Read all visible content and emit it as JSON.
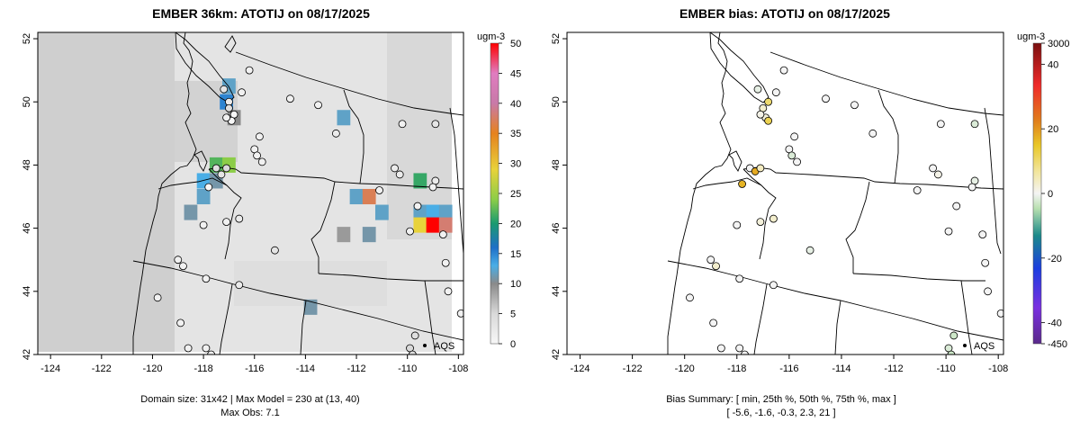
{
  "panels": [
    {
      "title": "EMBER 36km: ATOTIJ on 08/17/2025",
      "footer": [
        "Domain size: 31x42 | Max Model = 230 at (13, 40)",
        "Max Obs: 7.1"
      ],
      "colorbar": {
        "unit": "ugm-3",
        "labels": [
          "50",
          "45",
          "40",
          "35",
          "30",
          "25",
          "20",
          "15",
          "10",
          "5",
          "0"
        ]
      },
      "legend_label": "AQS"
    },
    {
      "title": "EMBER bias: ATOTIJ on 08/17/2025",
      "footer": [
        "Bias Summary: [ min, 25th %, 50th %, 75th %, max ]",
        "[ -5.6,   -1.6,   -0.3,   2.3,   21 ]"
      ],
      "colorbar": {
        "unit": "ugm-3",
        "labels": [
          "3000",
          "40",
          "20",
          "0",
          "-20",
          "-40",
          "-450"
        ]
      },
      "legend_label": "AQS"
    }
  ],
  "chart_data": [
    {
      "type": "heatmap",
      "title": "EMBER 36km: ATOTIJ on 08/17/2025",
      "variable": "ATOTIJ",
      "units": "ugm-3",
      "x_ticks": [
        "-124",
        "-122",
        "-120",
        "-118",
        "-116",
        "-114",
        "-112",
        "-110",
        "-108"
      ],
      "y_ticks": [
        "42",
        "44",
        "46",
        "48",
        "50",
        "52"
      ],
      "xlim": [
        -124.5,
        -107.8
      ],
      "ylim": [
        42,
        52.2
      ],
      "colorbar_range": [
        0,
        50
      ],
      "grid_dims": [
        31,
        42
      ],
      "max_model": 230,
      "max_model_cell": [
        13,
        40
      ],
      "max_obs": 7.1,
      "high_cells": [
        {
          "lon": -117.0,
          "lat": 50.5,
          "value": 12
        },
        {
          "lon": -117.1,
          "lat": 50.0,
          "value": 15
        },
        {
          "lon": -116.8,
          "lat": 49.5,
          "value": 10
        },
        {
          "lon": -112.5,
          "lat": 49.5,
          "value": 12
        },
        {
          "lon": -118.0,
          "lat": 47.5,
          "value": 13
        },
        {
          "lon": -117.5,
          "lat": 47.5,
          "value": 11
        },
        {
          "lon": -117.5,
          "lat": 48.0,
          "value": 22
        },
        {
          "lon": -117.0,
          "lat": 48.0,
          "value": 24
        },
        {
          "lon": -118.0,
          "lat": 47.0,
          "value": 12
        },
        {
          "lon": -118.5,
          "lat": 46.5,
          "value": 11
        },
        {
          "lon": -112.0,
          "lat": 47.0,
          "value": 12
        },
        {
          "lon": -111.5,
          "lat": 47.0,
          "value": 37
        },
        {
          "lon": -111.0,
          "lat": 46.5,
          "value": 12
        },
        {
          "lon": -112.5,
          "lat": 45.8,
          "value": 9
        },
        {
          "lon": -111.5,
          "lat": 45.8,
          "value": 11
        },
        {
          "lon": -109.5,
          "lat": 47.5,
          "value": 21
        },
        {
          "lon": -109.5,
          "lat": 46.5,
          "value": 12
        },
        {
          "lon": -109.0,
          "lat": 46.5,
          "value": 13
        },
        {
          "lon": -108.5,
          "lat": 46.5,
          "value": 12
        },
        {
          "lon": -109.5,
          "lat": 46.1,
          "value": 29
        },
        {
          "lon": -109.0,
          "lat": 46.1,
          "value": 50
        },
        {
          "lon": -108.5,
          "lat": 46.1,
          "value": 38
        },
        {
          "lon": -113.8,
          "lat": 43.5,
          "value": 11
        }
      ],
      "obs_points": [
        {
          "lon": -116.2,
          "lat": 51.0,
          "value": 1
        },
        {
          "lon": -117.2,
          "lat": 50.4,
          "value": 3
        },
        {
          "lon": -116.5,
          "lat": 50.3,
          "value": 1
        },
        {
          "lon": -117.0,
          "lat": 50.0,
          "value": 2
        },
        {
          "lon": -117.0,
          "lat": 49.8,
          "value": 4
        },
        {
          "lon": -116.8,
          "lat": 49.6,
          "value": 0
        },
        {
          "lon": -116.9,
          "lat": 49.4,
          "value": 0
        },
        {
          "lon": -117.1,
          "lat": 49.5,
          "value": 1
        },
        {
          "lon": -114.6,
          "lat": 50.1,
          "value": 1
        },
        {
          "lon": -113.5,
          "lat": 49.9,
          "value": 1
        },
        {
          "lon": -110.2,
          "lat": 49.3,
          "value": 1
        },
        {
          "lon": -108.9,
          "lat": 49.3,
          "value": 3
        },
        {
          "lon": -112.8,
          "lat": 49.0,
          "value": 2
        },
        {
          "lon": -115.8,
          "lat": 48.9,
          "value": 1
        },
        {
          "lon": -116.0,
          "lat": 48.5,
          "value": 1
        },
        {
          "lon": -115.9,
          "lat": 48.3,
          "value": 1
        },
        {
          "lon": -115.7,
          "lat": 48.1,
          "value": 1
        },
        {
          "lon": -117.5,
          "lat": 47.9,
          "value": 4
        },
        {
          "lon": -117.3,
          "lat": 47.7,
          "value": 3
        },
        {
          "lon": -117.1,
          "lat": 47.9,
          "value": 5
        },
        {
          "lon": -117.8,
          "lat": 47.3,
          "value": 0
        },
        {
          "lon": -110.5,
          "lat": 47.9,
          "value": 2
        },
        {
          "lon": -110.3,
          "lat": 47.7,
          "value": 2
        },
        {
          "lon": -111.1,
          "lat": 47.2,
          "value": 1
        },
        {
          "lon": -108.9,
          "lat": 47.5,
          "value": 2
        },
        {
          "lon": -109.0,
          "lat": 47.3,
          "value": 1
        },
        {
          "lon": -109.6,
          "lat": 46.7,
          "value": 1
        },
        {
          "lon": -117.1,
          "lat": 46.2,
          "value": 1
        },
        {
          "lon": -116.6,
          "lat": 46.3,
          "value": 2
        },
        {
          "lon": -118.0,
          "lat": 46.1,
          "value": 1
        },
        {
          "lon": -109.9,
          "lat": 45.9,
          "value": 1
        },
        {
          "lon": -108.6,
          "lat": 45.8,
          "value": 1
        },
        {
          "lon": -115.2,
          "lat": 45.3,
          "value": 3
        },
        {
          "lon": -119.0,
          "lat": 45.0,
          "value": 1
        },
        {
          "lon": -118.8,
          "lat": 44.8,
          "value": 1
        },
        {
          "lon": -117.9,
          "lat": 44.4,
          "value": 1
        },
        {
          "lon": -116.6,
          "lat": 44.2,
          "value": 2
        },
        {
          "lon": -108.5,
          "lat": 44.9,
          "value": 1
        },
        {
          "lon": -108.4,
          "lat": 44.0,
          "value": 1
        },
        {
          "lon": -107.9,
          "lat": 43.3,
          "value": 1
        },
        {
          "lon": -119.8,
          "lat": 43.8,
          "value": 1
        },
        {
          "lon": -118.9,
          "lat": 43.0,
          "value": 1
        },
        {
          "lon": -118.6,
          "lat": 42.2,
          "value": 1
        },
        {
          "lon": -117.9,
          "lat": 42.2,
          "value": 1
        },
        {
          "lon": -117.7,
          "lat": 42.0,
          "value": 1
        },
        {
          "lon": -109.7,
          "lat": 42.6,
          "value": 4
        },
        {
          "lon": -109.9,
          "lat": 42.2,
          "value": 5
        },
        {
          "lon": -109.8,
          "lat": 42.0,
          "value": 4
        }
      ]
    },
    {
      "type": "scatter",
      "title": "EMBER bias: ATOTIJ on 08/17/2025",
      "variable": "ATOTIJ bias",
      "units": "ugm-3",
      "x_ticks": [
        "-124",
        "-122",
        "-120",
        "-118",
        "-116",
        "-114",
        "-112",
        "-110",
        "-108"
      ],
      "y_ticks": [
        "42",
        "44",
        "46",
        "48",
        "50",
        "52"
      ],
      "xlim": [
        -124.5,
        -107.8
      ],
      "ylim": [
        42,
        52.2
      ],
      "colorbar_range": [
        -450,
        3000
      ],
      "bias_summary": {
        "min": -5.6,
        "p25": -1.6,
        "p50": -0.3,
        "p75": 2.3,
        "max": 21
      },
      "points": [
        {
          "lon": -116.2,
          "lat": 51.0,
          "value": 0
        },
        {
          "lon": -117.2,
          "lat": 50.4,
          "value": -1
        },
        {
          "lon": -116.5,
          "lat": 50.3,
          "value": 0
        },
        {
          "lon": -116.8,
          "lat": 50.0,
          "value": 10
        },
        {
          "lon": -117.0,
          "lat": 49.8,
          "value": 3
        },
        {
          "lon": -116.9,
          "lat": 49.5,
          "value": 2
        },
        {
          "lon": -116.8,
          "lat": 49.4,
          "value": 12
        },
        {
          "lon": -117.1,
          "lat": 49.6,
          "value": 1
        },
        {
          "lon": -114.6,
          "lat": 50.1,
          "value": 0
        },
        {
          "lon": -113.5,
          "lat": 49.9,
          "value": 0
        },
        {
          "lon": -110.2,
          "lat": 49.3,
          "value": 0
        },
        {
          "lon": -108.9,
          "lat": 49.3,
          "value": -2
        },
        {
          "lon": -112.8,
          "lat": 49.0,
          "value": 0
        },
        {
          "lon": -115.8,
          "lat": 48.9,
          "value": 0
        },
        {
          "lon": -116.0,
          "lat": 48.5,
          "value": 0
        },
        {
          "lon": -115.9,
          "lat": 48.3,
          "value": -2
        },
        {
          "lon": -115.7,
          "lat": 48.1,
          "value": 0
        },
        {
          "lon": -117.5,
          "lat": 47.9,
          "value": 0
        },
        {
          "lon": -117.3,
          "lat": 47.8,
          "value": 18
        },
        {
          "lon": -117.1,
          "lat": 47.9,
          "value": 4
        },
        {
          "lon": -117.8,
          "lat": 47.4,
          "value": 17
        },
        {
          "lon": -110.5,
          "lat": 47.9,
          "value": 0
        },
        {
          "lon": -110.3,
          "lat": 47.7,
          "value": 1
        },
        {
          "lon": -111.1,
          "lat": 47.2,
          "value": 0
        },
        {
          "lon": -108.9,
          "lat": 47.5,
          "value": -1
        },
        {
          "lon": -109.0,
          "lat": 47.3,
          "value": 0
        },
        {
          "lon": -109.6,
          "lat": 46.7,
          "value": 0
        },
        {
          "lon": -117.1,
          "lat": 46.2,
          "value": 2
        },
        {
          "lon": -116.6,
          "lat": 46.3,
          "value": 3
        },
        {
          "lon": -118.0,
          "lat": 46.1,
          "value": 0
        },
        {
          "lon": -109.9,
          "lat": 45.9,
          "value": 0
        },
        {
          "lon": -108.6,
          "lat": 45.8,
          "value": 0
        },
        {
          "lon": -115.2,
          "lat": 45.3,
          "value": -1
        },
        {
          "lon": -119.0,
          "lat": 45.0,
          "value": 0
        },
        {
          "lon": -118.8,
          "lat": 44.8,
          "value": 3
        },
        {
          "lon": -117.9,
          "lat": 44.4,
          "value": 0
        },
        {
          "lon": -116.6,
          "lat": 44.2,
          "value": 0
        },
        {
          "lon": -108.5,
          "lat": 44.9,
          "value": 0
        },
        {
          "lon": -108.4,
          "lat": 44.0,
          "value": 0
        },
        {
          "lon": -107.9,
          "lat": 43.3,
          "value": 0
        },
        {
          "lon": -119.8,
          "lat": 43.8,
          "value": 0
        },
        {
          "lon": -118.9,
          "lat": 43.0,
          "value": 0
        },
        {
          "lon": -118.6,
          "lat": 42.2,
          "value": 0
        },
        {
          "lon": -117.9,
          "lat": 42.2,
          "value": 0
        },
        {
          "lon": -117.7,
          "lat": 42.0,
          "value": 0
        },
        {
          "lon": -109.7,
          "lat": 42.6,
          "value": -3
        },
        {
          "lon": -109.9,
          "lat": 42.2,
          "value": -2
        },
        {
          "lon": -109.8,
          "lat": 42.0,
          "value": -3
        }
      ]
    }
  ]
}
